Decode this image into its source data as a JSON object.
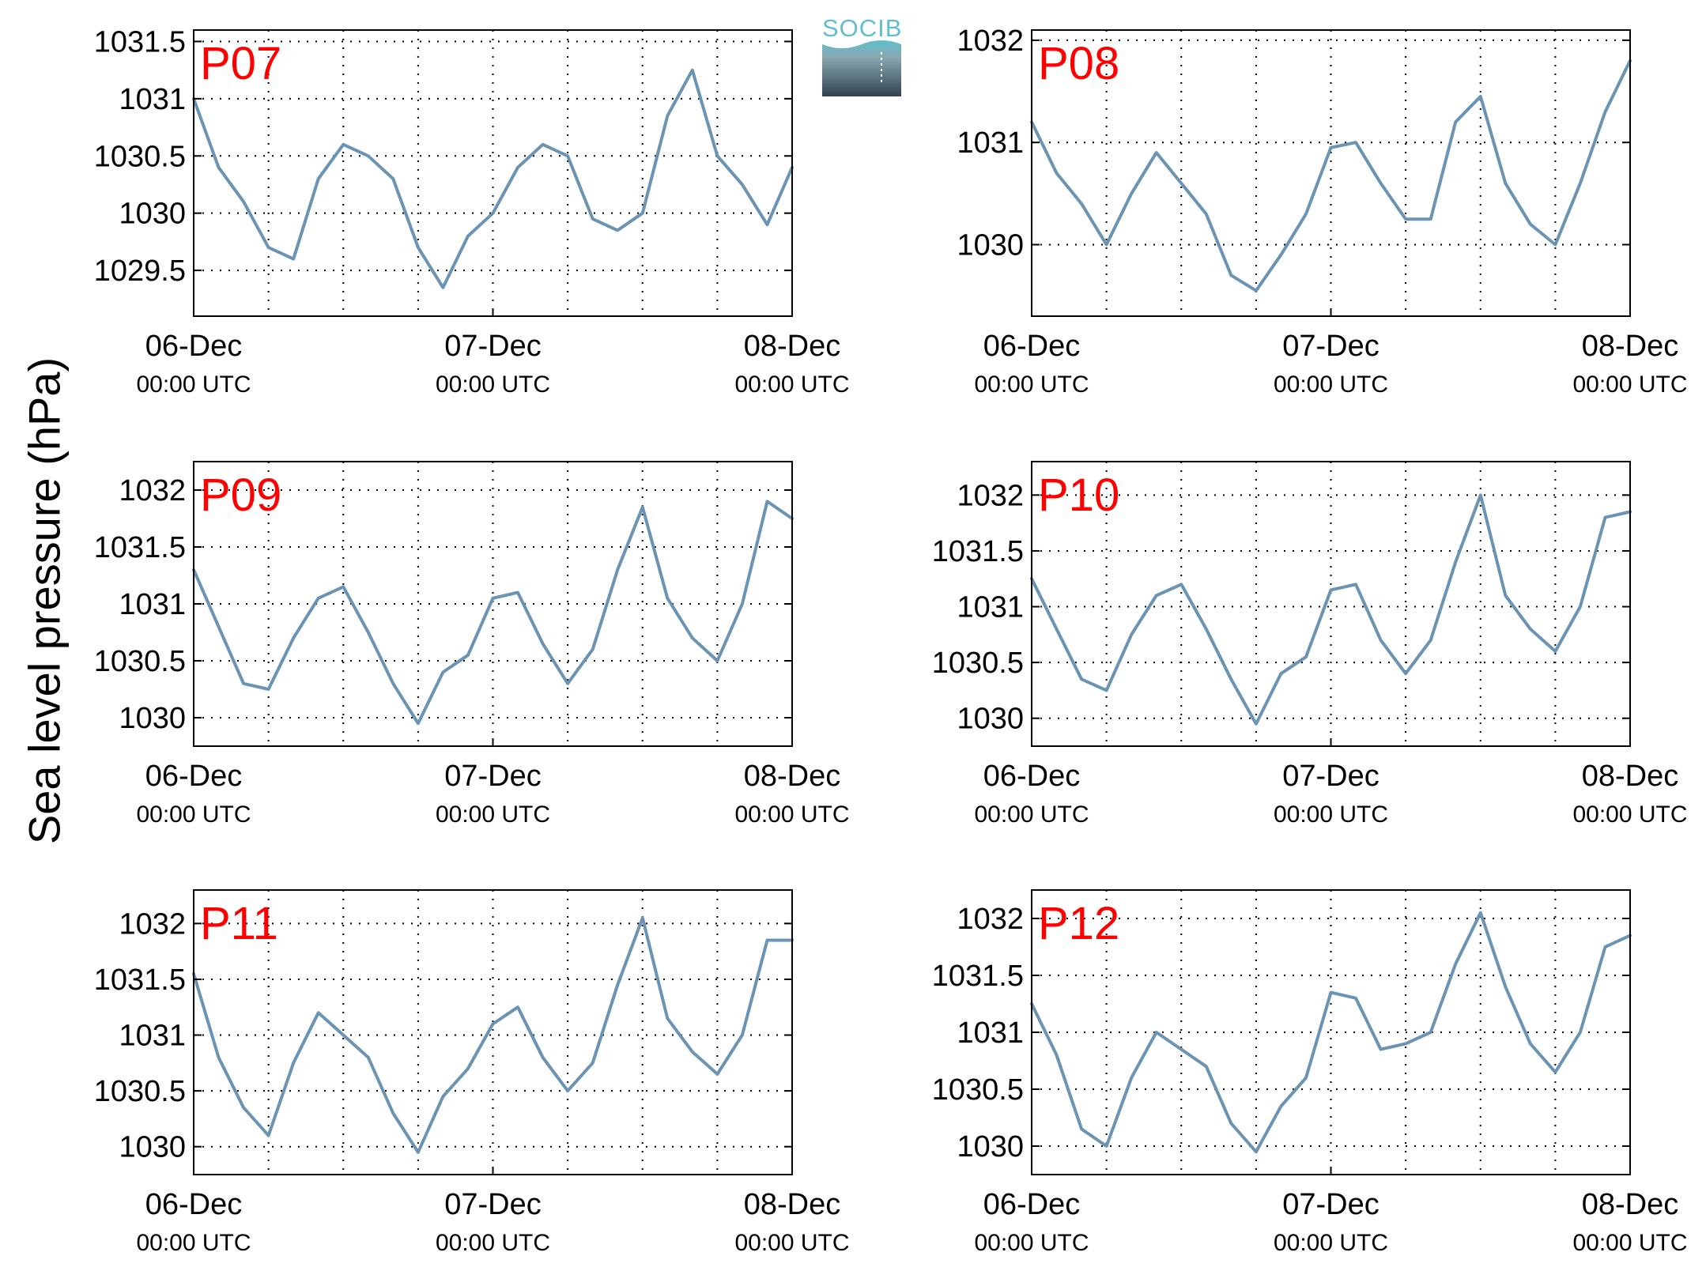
{
  "figure": {
    "ylabel": "Sea level pressure (hPa)",
    "logo_text": "SOCIB"
  },
  "colors": {
    "line": "#6a93b4",
    "panel_label": "#ff0000",
    "logo_top": "#5fbfcc",
    "logo_bottom": "#2f4350"
  },
  "chart_data": [
    {
      "type": "line",
      "title": "P07",
      "xlabel": "",
      "ylabel": "",
      "xlim": [
        "2024-12-06T00:00",
        "2024-12-08T00:00"
      ],
      "xticks": [
        {
          "date": "06-Dec",
          "time": "00:00 UTC"
        },
        {
          "date": "07-Dec",
          "time": "00:00 UTC"
        },
        {
          "date": "08-Dec",
          "time": "00:00 UTC"
        }
      ],
      "ylim": [
        1029.1,
        1031.6
      ],
      "yticks": [
        1029.5,
        1030,
        1030.5,
        1031,
        1031.5
      ],
      "grid": true,
      "series": [
        {
          "x": [
            "2024-12-06T00:00",
            "2024-12-06T02:00",
            "2024-12-06T04:00",
            "2024-12-06T06:00",
            "2024-12-06T08:00",
            "2024-12-06T10:00",
            "2024-12-06T12:00",
            "2024-12-06T14:00",
            "2024-12-06T16:00",
            "2024-12-06T18:00",
            "2024-12-06T20:00",
            "2024-12-06T22:00",
            "2024-12-07T00:00",
            "2024-12-07T02:00",
            "2024-12-07T04:00",
            "2024-12-07T06:00",
            "2024-12-07T08:00",
            "2024-12-07T10:00",
            "2024-12-07T12:00",
            "2024-12-07T14:00",
            "2024-12-07T16:00",
            "2024-12-07T18:00",
            "2024-12-07T20:00",
            "2024-12-07T22:00",
            "2024-12-08T00:00"
          ],
          "y": [
            1031.0,
            1030.4,
            1030.1,
            1029.7,
            1029.6,
            1030.3,
            1030.6,
            1030.5,
            1030.3,
            1029.7,
            1029.35,
            1029.8,
            1030.0,
            1030.4,
            1030.6,
            1030.5,
            1029.95,
            1029.85,
            1030.0,
            1030.85,
            1031.25,
            1030.5,
            1030.25,
            1029.9,
            1030.4
          ]
        }
      ]
    },
    {
      "type": "line",
      "title": "P08",
      "xlabel": "",
      "ylabel": "",
      "xlim": [
        "2024-12-06T00:00",
        "2024-12-08T00:00"
      ],
      "xticks": [
        {
          "date": "06-Dec",
          "time": "00:00 UTC"
        },
        {
          "date": "07-Dec",
          "time": "00:00 UTC"
        },
        {
          "date": "08-Dec",
          "time": "00:00 UTC"
        }
      ],
      "ylim": [
        1029.3,
        1032.1
      ],
      "yticks": [
        1030,
        1031,
        1032
      ],
      "grid": true,
      "series": [
        {
          "x": [
            "2024-12-06T00:00",
            "2024-12-06T02:00",
            "2024-12-06T04:00",
            "2024-12-06T06:00",
            "2024-12-06T08:00",
            "2024-12-06T10:00",
            "2024-12-06T12:00",
            "2024-12-06T14:00",
            "2024-12-06T16:00",
            "2024-12-06T18:00",
            "2024-12-06T20:00",
            "2024-12-06T22:00",
            "2024-12-07T00:00",
            "2024-12-07T02:00",
            "2024-12-07T04:00",
            "2024-12-07T06:00",
            "2024-12-07T08:00",
            "2024-12-07T10:00",
            "2024-12-07T12:00",
            "2024-12-07T14:00",
            "2024-12-07T16:00",
            "2024-12-07T18:00",
            "2024-12-07T20:00",
            "2024-12-07T22:00",
            "2024-12-08T00:00"
          ],
          "y": [
            1031.2,
            1030.7,
            1030.4,
            1030.0,
            1030.5,
            1030.9,
            1030.6,
            1030.3,
            1029.7,
            1029.55,
            1029.9,
            1030.3,
            1030.95,
            1031.0,
            1030.6,
            1030.25,
            1030.25,
            1031.2,
            1031.45,
            1030.6,
            1030.2,
            1030.0,
            1030.6,
            1031.3,
            1031.8
          ]
        }
      ]
    },
    {
      "type": "line",
      "title": "P09",
      "xlabel": "",
      "ylabel": "",
      "xlim": [
        "2024-12-06T00:00",
        "2024-12-08T00:00"
      ],
      "xticks": [
        {
          "date": "06-Dec",
          "time": "00:00 UTC"
        },
        {
          "date": "07-Dec",
          "time": "00:00 UTC"
        },
        {
          "date": "08-Dec",
          "time": "00:00 UTC"
        }
      ],
      "ylim": [
        1029.75,
        1032.25
      ],
      "yticks": [
        1030,
        1030.5,
        1031,
        1031.5,
        1032
      ],
      "grid": true,
      "series": [
        {
          "x": [
            "2024-12-06T00:00",
            "2024-12-06T02:00",
            "2024-12-06T04:00",
            "2024-12-06T06:00",
            "2024-12-06T08:00",
            "2024-12-06T10:00",
            "2024-12-06T12:00",
            "2024-12-06T14:00",
            "2024-12-06T16:00",
            "2024-12-06T18:00",
            "2024-12-06T20:00",
            "2024-12-06T22:00",
            "2024-12-07T00:00",
            "2024-12-07T02:00",
            "2024-12-07T04:00",
            "2024-12-07T06:00",
            "2024-12-07T08:00",
            "2024-12-07T10:00",
            "2024-12-07T12:00",
            "2024-12-07T14:00",
            "2024-12-07T16:00",
            "2024-12-07T18:00",
            "2024-12-07T20:00",
            "2024-12-07T22:00",
            "2024-12-08T00:00"
          ],
          "y": [
            1031.3,
            1030.8,
            1030.3,
            1030.25,
            1030.7,
            1031.05,
            1031.15,
            1030.75,
            1030.3,
            1029.95,
            1030.4,
            1030.55,
            1031.05,
            1031.1,
            1030.65,
            1030.3,
            1030.6,
            1031.3,
            1031.85,
            1031.05,
            1030.7,
            1030.5,
            1031.0,
            1031.9,
            1031.75
          ]
        }
      ]
    },
    {
      "type": "line",
      "title": "P10",
      "xlabel": "",
      "ylabel": "",
      "xlim": [
        "2024-12-06T00:00",
        "2024-12-08T00:00"
      ],
      "xticks": [
        {
          "date": "06-Dec",
          "time": "00:00 UTC"
        },
        {
          "date": "07-Dec",
          "time": "00:00 UTC"
        },
        {
          "date": "08-Dec",
          "time": "00:00 UTC"
        }
      ],
      "ylim": [
        1029.75,
        1032.3
      ],
      "yticks": [
        1030,
        1030.5,
        1031,
        1031.5,
        1032
      ],
      "grid": true,
      "series": [
        {
          "x": [
            "2024-12-06T00:00",
            "2024-12-06T02:00",
            "2024-12-06T04:00",
            "2024-12-06T06:00",
            "2024-12-06T08:00",
            "2024-12-06T10:00",
            "2024-12-06T12:00",
            "2024-12-06T14:00",
            "2024-12-06T16:00",
            "2024-12-06T18:00",
            "2024-12-06T20:00",
            "2024-12-06T22:00",
            "2024-12-07T00:00",
            "2024-12-07T02:00",
            "2024-12-07T04:00",
            "2024-12-07T06:00",
            "2024-12-07T08:00",
            "2024-12-07T10:00",
            "2024-12-07T12:00",
            "2024-12-07T14:00",
            "2024-12-07T16:00",
            "2024-12-07T18:00",
            "2024-12-07T20:00",
            "2024-12-07T22:00",
            "2024-12-08T00:00"
          ],
          "y": [
            1031.25,
            1030.8,
            1030.35,
            1030.25,
            1030.75,
            1031.1,
            1031.2,
            1030.8,
            1030.35,
            1029.95,
            1030.4,
            1030.55,
            1031.15,
            1031.2,
            1030.7,
            1030.4,
            1030.7,
            1031.4,
            1032.0,
            1031.1,
            1030.8,
            1030.6,
            1031.0,
            1031.8,
            1031.85
          ]
        }
      ]
    },
    {
      "type": "line",
      "title": "P11",
      "xlabel": "",
      "ylabel": "",
      "xlim": [
        "2024-12-06T00:00",
        "2024-12-08T00:00"
      ],
      "xticks": [
        {
          "date": "06-Dec",
          "time": "00:00 UTC"
        },
        {
          "date": "07-Dec",
          "time": "00:00 UTC"
        },
        {
          "date": "08-Dec",
          "time": "00:00 UTC"
        }
      ],
      "ylim": [
        1029.75,
        1032.3
      ],
      "yticks": [
        1030,
        1030.5,
        1031,
        1031.5,
        1032
      ],
      "grid": true,
      "series": [
        {
          "x": [
            "2024-12-06T00:00",
            "2024-12-06T02:00",
            "2024-12-06T04:00",
            "2024-12-06T06:00",
            "2024-12-06T08:00",
            "2024-12-06T10:00",
            "2024-12-06T12:00",
            "2024-12-06T14:00",
            "2024-12-06T16:00",
            "2024-12-06T18:00",
            "2024-12-06T20:00",
            "2024-12-06T22:00",
            "2024-12-07T00:00",
            "2024-12-07T02:00",
            "2024-12-07T04:00",
            "2024-12-07T06:00",
            "2024-12-07T08:00",
            "2024-12-07T10:00",
            "2024-12-07T12:00",
            "2024-12-07T14:00",
            "2024-12-07T16:00",
            "2024-12-07T18:00",
            "2024-12-07T20:00",
            "2024-12-07T22:00",
            "2024-12-08T00:00"
          ],
          "y": [
            1031.55,
            1030.8,
            1030.35,
            1030.1,
            1030.75,
            1031.2,
            1031.0,
            1030.8,
            1030.3,
            1029.95,
            1030.45,
            1030.7,
            1031.1,
            1031.25,
            1030.8,
            1030.5,
            1030.75,
            1031.45,
            1032.05,
            1031.15,
            1030.85,
            1030.65,
            1031.0,
            1031.85,
            1031.85
          ]
        }
      ]
    },
    {
      "type": "line",
      "title": "P12",
      "xlabel": "",
      "ylabel": "",
      "xlim": [
        "2024-12-06T00:00",
        "2024-12-08T00:00"
      ],
      "xticks": [
        {
          "date": "06-Dec",
          "time": "00:00 UTC"
        },
        {
          "date": "07-Dec",
          "time": "00:00 UTC"
        },
        {
          "date": "08-Dec",
          "time": "00:00 UTC"
        }
      ],
      "ylim": [
        1029.75,
        1032.25
      ],
      "yticks": [
        1030,
        1030.5,
        1031,
        1031.5,
        1032
      ],
      "grid": true,
      "series": [
        {
          "x": [
            "2024-12-06T00:00",
            "2024-12-06T02:00",
            "2024-12-06T04:00",
            "2024-12-06T06:00",
            "2024-12-06T08:00",
            "2024-12-06T10:00",
            "2024-12-06T12:00",
            "2024-12-06T14:00",
            "2024-12-06T16:00",
            "2024-12-06T18:00",
            "2024-12-06T20:00",
            "2024-12-06T22:00",
            "2024-12-07T00:00",
            "2024-12-07T02:00",
            "2024-12-07T04:00",
            "2024-12-07T06:00",
            "2024-12-07T08:00",
            "2024-12-07T10:00",
            "2024-12-07T12:00",
            "2024-12-07T14:00",
            "2024-12-07T16:00",
            "2024-12-07T18:00",
            "2024-12-07T20:00",
            "2024-12-07T22:00",
            "2024-12-08T00:00"
          ],
          "y": [
            1031.25,
            1030.8,
            1030.15,
            1030.0,
            1030.6,
            1031.0,
            1030.85,
            1030.7,
            1030.2,
            1029.95,
            1030.35,
            1030.6,
            1031.35,
            1031.3,
            1030.85,
            1030.9,
            1031.0,
            1031.6,
            1032.05,
            1031.4,
            1030.9,
            1030.65,
            1031.0,
            1031.75,
            1031.85
          ]
        }
      ]
    }
  ]
}
